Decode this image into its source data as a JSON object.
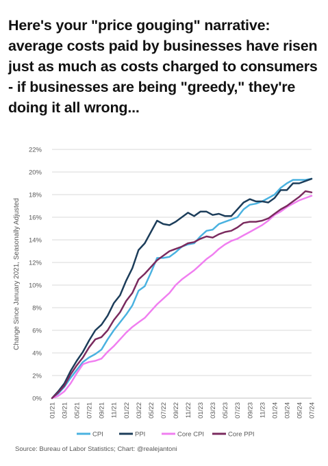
{
  "headline": "Here's your \"price gouging\" narrative: average costs paid by businesses have risen just as much as costs charged to consumers - if businesses are being \"greedy,\" they're doing it all wrong...",
  "source": "Source: Bureau of Labor Statistics; Chart: @realejantoni",
  "colors": {
    "cpi": "#4ab2e0",
    "ppi": "#1c3d5a",
    "core_cpi": "#f07ef0",
    "core_ppi": "#7a2a5e",
    "grid": "#d9d9d9",
    "text": "#595959"
  },
  "chart_data": {
    "type": "line",
    "title": "",
    "xlabel": "",
    "ylabel": "Change Since January 2021, Seasonally Adjusted",
    "ylim": [
      0,
      22
    ],
    "y_ticks": [
      0,
      2,
      4,
      6,
      8,
      10,
      12,
      14,
      16,
      18,
      20,
      22
    ],
    "y_tick_labels": [
      "0%",
      "2%",
      "4%",
      "6%",
      "8%",
      "10%",
      "12%",
      "14%",
      "16%",
      "18%",
      "20%",
      "22%"
    ],
    "grid": true,
    "legend_position": "bottom",
    "x": [
      "01/21",
      "02/21",
      "03/21",
      "04/21",
      "05/21",
      "06/21",
      "07/21",
      "08/21",
      "09/21",
      "10/21",
      "11/21",
      "12/21",
      "01/22",
      "02/22",
      "03/22",
      "04/22",
      "05/22",
      "06/22",
      "07/22",
      "08/22",
      "09/22",
      "10/22",
      "11/22",
      "12/22",
      "01/23",
      "02/23",
      "03/23",
      "04/23",
      "05/23",
      "06/23",
      "07/23",
      "08/23",
      "09/23",
      "10/23",
      "11/23",
      "12/23",
      "01/24",
      "02/24",
      "03/24",
      "04/24",
      "05/24",
      "06/24",
      "07/24"
    ],
    "x_tick_labels": [
      "01/21",
      "03/21",
      "05/21",
      "07/21",
      "09/21",
      "11/21",
      "01/22",
      "03/22",
      "05/22",
      "07/22",
      "09/22",
      "11/22",
      "01/23",
      "03/23",
      "05/23",
      "07/23",
      "09/23",
      "11/23",
      "01/24",
      "03/24",
      "05/24",
      "07/24"
    ],
    "series": [
      {
        "name": "CPI",
        "color_key": "cpi",
        "values": [
          0,
          0.4,
          1.0,
          1.8,
          2.5,
          3.2,
          3.6,
          3.9,
          4.3,
          5.2,
          6.0,
          6.7,
          7.4,
          8.2,
          9.5,
          9.9,
          11.1,
          12.4,
          12.4,
          12.5,
          12.9,
          13.4,
          13.6,
          13.7,
          14.3,
          14.8,
          14.9,
          15.4,
          15.6,
          15.8,
          16.0,
          16.7,
          17.1,
          17.2,
          17.4,
          17.7,
          18.0,
          18.6,
          19.0,
          19.3,
          19.3,
          19.3,
          19.4
        ]
      },
      {
        "name": "PPI",
        "color_key": "ppi",
        "values": [
          0,
          0.6,
          1.3,
          2.4,
          3.3,
          4.1,
          5.1,
          6.0,
          6.5,
          7.3,
          8.4,
          9.1,
          10.4,
          11.5,
          13.1,
          13.7,
          14.7,
          15.7,
          15.4,
          15.3,
          15.6,
          16.0,
          16.4,
          16.1,
          16.5,
          16.5,
          16.2,
          16.3,
          16.1,
          16.1,
          16.7,
          17.3,
          17.6,
          17.4,
          17.4,
          17.3,
          17.7,
          18.4,
          18.4,
          19.0,
          19.0,
          19.2,
          19.4
        ]
      },
      {
        "name": "Core CPI",
        "color_key": "core_cpi",
        "values": [
          0,
          0.2,
          0.6,
          1.3,
          2.2,
          3.0,
          3.2,
          3.3,
          3.5,
          4.1,
          4.6,
          5.2,
          5.8,
          6.3,
          6.7,
          7.1,
          7.7,
          8.3,
          8.8,
          9.3,
          10.0,
          10.5,
          10.9,
          11.3,
          11.8,
          12.3,
          12.7,
          13.2,
          13.6,
          13.9,
          14.1,
          14.4,
          14.7,
          15.0,
          15.3,
          15.7,
          16.2,
          16.5,
          16.9,
          17.2,
          17.5,
          17.7,
          17.9
        ]
      },
      {
        "name": "Core PPI",
        "color_key": "core_ppi",
        "values": [
          0,
          0.5,
          1.1,
          2.1,
          2.9,
          3.6,
          4.5,
          5.2,
          5.4,
          6.0,
          6.9,
          7.6,
          8.6,
          9.3,
          10.5,
          11.0,
          11.6,
          12.2,
          12.6,
          13.0,
          13.2,
          13.4,
          13.7,
          13.8,
          14.1,
          14.3,
          14.2,
          14.5,
          14.7,
          14.8,
          15.1,
          15.5,
          15.6,
          15.6,
          15.7,
          15.9,
          16.3,
          16.7,
          17.0,
          17.4,
          17.8,
          18.3,
          18.2
        ]
      }
    ]
  }
}
